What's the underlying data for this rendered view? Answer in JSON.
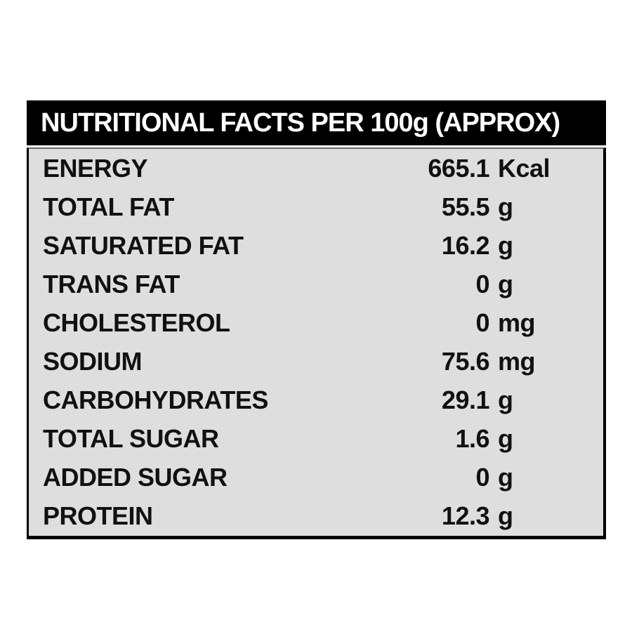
{
  "page": {
    "background": "#ffffff"
  },
  "table": {
    "title": "NUTRITIONAL FACTS PER 100g (APPROX)",
    "colors": {
      "header_bg": "#000000",
      "header_text": "#ffffff",
      "body_bg": "#dedede",
      "border": "#000000",
      "text": "#111111"
    },
    "rows": [
      {
        "label": "ENERGY",
        "value": "665.1",
        "unit": "Kcal"
      },
      {
        "label": "TOTAL FAT",
        "value": "55.5",
        "unit": "g"
      },
      {
        "label": "SATURATED FAT",
        "value": "16.2",
        "unit": "g"
      },
      {
        "label": "TRANS FAT",
        "value": "0",
        "unit": "g"
      },
      {
        "label": "CHOLESTEROL",
        "value": "0",
        "unit": "mg"
      },
      {
        "label": "SODIUM",
        "value": "75.6",
        "unit": "mg"
      },
      {
        "label": "CARBOHYDRATES",
        "value": "29.1",
        "unit": "g"
      },
      {
        "label": "TOTAL SUGAR",
        "value": "1.6",
        "unit": "g"
      },
      {
        "label": "ADDED SUGAR",
        "value": "0",
        "unit": "g"
      },
      {
        "label": "PROTEIN",
        "value": "12.3",
        "unit": "g"
      }
    ]
  }
}
